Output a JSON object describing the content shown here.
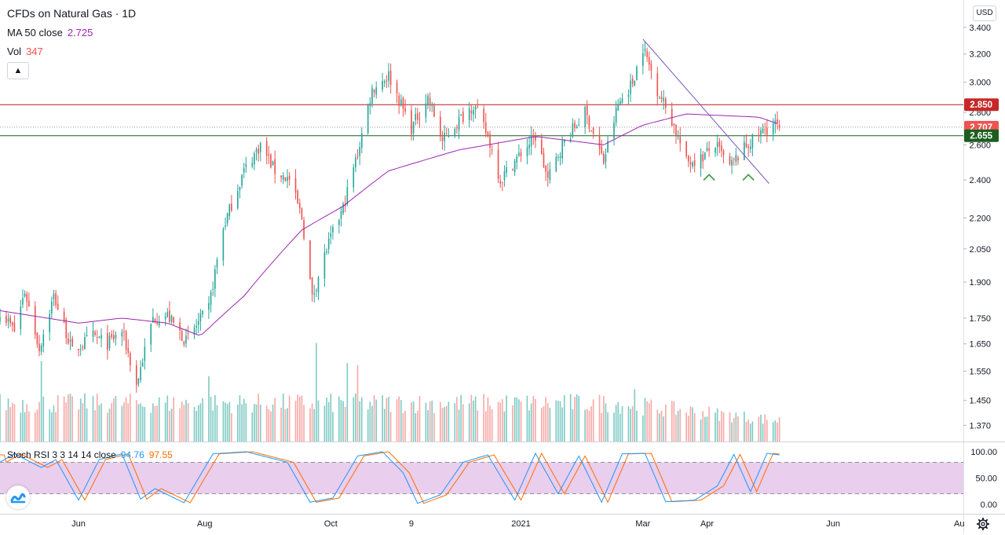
{
  "legend": {
    "title": "CFDs on Natural Gas · 1D",
    "ma_label": "MA 50 close",
    "ma_value": "2.725",
    "vol_label": "Vol",
    "vol_value": "347",
    "stoch_label": "Stoch RSI 3 3 14 14 close",
    "stoch_k": "94.76",
    "stoch_d": "97.55"
  },
  "ui": {
    "currency": "USD",
    "collapse_icon": "chevron-up-icon",
    "logo_icon": "tradingview-logo-icon",
    "settings_icon": "gear-icon"
  },
  "colors": {
    "up": "#26a69a",
    "down": "#ef5350",
    "ma": "#9c27b0",
    "resistance": "#b71c1c",
    "support": "#1b5e20",
    "trendline": "#7e57c2",
    "stoch_k": "#2196f3",
    "stoch_d": "#ff6d00",
    "stoch_band": "#e1bee7",
    "marker": "#43a047"
  },
  "chart_data": {
    "type": "candlestick",
    "symbol": "CFDs on Natural Gas",
    "interval": "1D",
    "currency": "USD",
    "y_axis": {
      "scale": "log",
      "range": [
        1.32,
        3.62
      ],
      "ticks": [
        "3.400",
        "3.200",
        "3.000",
        "2.800",
        "2.600",
        "2.400",
        "2.200",
        "2.050",
        "1.900",
        "1.750",
        "1.650",
        "1.550",
        "1.450",
        "1.370"
      ]
    },
    "x_axis": {
      "range": [
        "2020-04-24",
        "2021-08-03"
      ],
      "ticks": [
        {
          "label": "Jun",
          "date": "2020-06-01"
        },
        {
          "label": "Aug",
          "date": "2020-08-01"
        },
        {
          "label": "Oct",
          "date": "2020-10-01"
        },
        {
          "label": "9",
          "date": "2020-11-09"
        },
        {
          "label": "2021",
          "date": "2021-01-01"
        },
        {
          "label": "Mar",
          "date": "2021-03-01"
        },
        {
          "label": "Apr",
          "date": "2021-04-01"
        },
        {
          "label": "Jun",
          "date": "2021-06-01"
        },
        {
          "label": "Au",
          "date": "2021-08-01"
        }
      ]
    },
    "price_swings": [
      [
        "2020-04-24",
        1.78
      ],
      [
        "2020-05-01",
        1.7
      ],
      [
        "2020-05-06",
        1.86
      ],
      [
        "2020-05-13",
        1.63
      ],
      [
        "2020-05-20",
        1.84
      ],
      [
        "2020-05-29",
        1.62
      ],
      [
        "2020-06-08",
        1.68
      ],
      [
        "2020-06-15",
        1.65
      ],
      [
        "2020-06-22",
        1.7
      ],
      [
        "2020-06-29",
        1.5
      ],
      [
        "2020-07-07",
        1.75
      ],
      [
        "2020-07-14",
        1.76
      ],
      [
        "2020-07-23",
        1.66
      ],
      [
        "2020-08-03",
        1.79
      ],
      [
        "2020-08-10",
        2.15
      ],
      [
        "2020-08-20",
        2.45
      ],
      [
        "2020-08-28",
        2.6
      ],
      [
        "2020-09-04",
        2.45
      ],
      [
        "2020-09-11",
        2.4
      ],
      [
        "2020-09-17",
        2.2
      ],
      [
        "2020-09-22",
        1.83
      ],
      [
        "2020-09-29",
        2.05
      ],
      [
        "2020-10-07",
        2.25
      ],
      [
        "2020-10-14",
        2.55
      ],
      [
        "2020-10-21",
        2.95
      ],
      [
        "2020-10-29",
        3.05
      ],
      [
        "2020-11-04",
        2.85
      ],
      [
        "2020-11-09",
        2.7
      ],
      [
        "2020-11-17",
        2.9
      ],
      [
        "2020-11-24",
        2.62
      ],
      [
        "2020-12-02",
        2.75
      ],
      [
        "2020-12-09",
        2.85
      ],
      [
        "2020-12-16",
        2.65
      ],
      [
        "2020-12-22",
        2.4
      ],
      [
        "2021-01-01",
        2.55
      ],
      [
        "2021-01-08",
        2.65
      ],
      [
        "2021-01-14",
        2.4
      ],
      [
        "2021-01-21",
        2.6
      ],
      [
        "2021-02-01",
        2.8
      ],
      [
        "2021-02-10",
        2.5
      ],
      [
        "2021-02-17",
        2.85
      ],
      [
        "2021-02-24",
        3.0
      ],
      [
        "2021-03-01",
        3.25
      ],
      [
        "2021-03-08",
        2.95
      ],
      [
        "2021-03-15",
        2.75
      ],
      [
        "2021-03-22",
        2.5
      ],
      [
        "2021-03-29",
        2.52
      ],
      [
        "2021-04-05",
        2.6
      ],
      [
        "2021-04-12",
        2.47
      ],
      [
        "2021-04-19",
        2.58
      ],
      [
        "2021-04-26",
        2.66
      ],
      [
        "2021-05-03",
        2.73
      ],
      [
        "2021-05-06",
        2.71
      ]
    ],
    "last_price": 2.707,
    "moving_average": {
      "name": "MA 50 close",
      "last": 2.725,
      "points": [
        [
          "2020-04-24",
          1.78
        ],
        [
          "2020-06-01",
          1.73
        ],
        [
          "2020-06-22",
          1.75
        ],
        [
          "2020-07-14",
          1.73
        ],
        [
          "2020-07-30",
          1.68
        ],
        [
          "2020-08-20",
          1.84
        ],
        [
          "2020-09-17",
          2.14
        ],
        [
          "2020-10-07",
          2.26
        ],
        [
          "2020-10-29",
          2.45
        ],
        [
          "2020-12-02",
          2.57
        ],
        [
          "2021-01-08",
          2.65
        ],
        [
          "2021-02-10",
          2.6
        ],
        [
          "2021-03-01",
          2.72
        ],
        [
          "2021-03-22",
          2.79
        ],
        [
          "2021-04-26",
          2.77
        ],
        [
          "2021-05-06",
          2.725
        ]
      ]
    },
    "horizontal_lines": [
      {
        "price": 2.85,
        "color": "#b71c1c"
      },
      {
        "price": 2.655,
        "color": "#1b5e20"
      }
    ],
    "axis_labels": [
      {
        "text": "2.850",
        "price": 2.85,
        "color": "#c62828"
      },
      {
        "text": "2.707",
        "price": 2.707,
        "color": "#ef5350"
      },
      {
        "text": "2.655",
        "price": 2.655,
        "color": "#1b5e20"
      }
    ],
    "trendline": {
      "from": [
        "2021-03-01",
        3.31
      ],
      "to": [
        "2021-05-01",
        2.38
      ]
    },
    "markers": [
      {
        "date": "2021-04-02",
        "price": 2.42
      },
      {
        "date": "2021-04-21",
        "price": 2.42
      }
    ],
    "volume": {
      "label": "Vol",
      "last": 347,
      "spikes": [
        {
          "date": "2020-09-24",
          "rel": 0.98
        },
        {
          "date": "2020-10-09",
          "rel": 0.78
        },
        {
          "date": "2020-10-14",
          "rel": 0.76
        },
        {
          "date": "2020-05-14",
          "rel": 0.8
        },
        {
          "date": "2020-08-03",
          "rel": 0.65
        },
        {
          "date": "2021-02-25",
          "rel": 0.52
        }
      ]
    },
    "stoch_rsi": {
      "name": "Stoch RSI 3 3 14 14 close",
      "k_last": 94.76,
      "d_last": 97.55,
      "y_ticks": [
        "100.00",
        "50.00",
        "0.00"
      ],
      "band": [
        20,
        80
      ],
      "pivots": [
        [
          "2020-04-24",
          80
        ],
        [
          "2020-05-01",
          96
        ],
        [
          "2020-05-14",
          70
        ],
        [
          "2020-05-21",
          85
        ],
        [
          "2020-06-01",
          8
        ],
        [
          "2020-06-11",
          85
        ],
        [
          "2020-06-22",
          96
        ],
        [
          "2020-07-01",
          10
        ],
        [
          "2020-07-08",
          30
        ],
        [
          "2020-07-22",
          3
        ],
        [
          "2020-08-05",
          96
        ],
        [
          "2020-08-21",
          100
        ],
        [
          "2020-09-10",
          80
        ],
        [
          "2020-09-21",
          4
        ],
        [
          "2020-10-02",
          12
        ],
        [
          "2020-10-14",
          92
        ],
        [
          "2020-10-26",
          100
        ],
        [
          "2020-11-05",
          60
        ],
        [
          "2020-11-12",
          2
        ],
        [
          "2020-11-23",
          18
        ],
        [
          "2020-12-04",
          80
        ],
        [
          "2020-12-16",
          94
        ],
        [
          "2020-12-29",
          8
        ],
        [
          "2021-01-08",
          97
        ],
        [
          "2021-01-19",
          20
        ],
        [
          "2021-01-29",
          92
        ],
        [
          "2021-02-09",
          4
        ],
        [
          "2021-02-19",
          96
        ],
        [
          "2021-03-02",
          97
        ],
        [
          "2021-03-12",
          5
        ],
        [
          "2021-03-26",
          8
        ],
        [
          "2021-04-06",
          35
        ],
        [
          "2021-04-14",
          95
        ],
        [
          "2021-04-22",
          24
        ],
        [
          "2021-04-30",
          97
        ],
        [
          "2021-05-06",
          94
        ]
      ]
    }
  }
}
